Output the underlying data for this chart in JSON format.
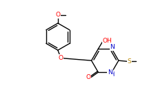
{
  "bg_color": "#ffffff",
  "bond_color": "#000000",
  "bond_width": 1.0,
  "atom_colors": {
    "O": "#ff0000",
    "N": "#0000cc",
    "S": "#bb8800",
    "C": "#000000"
  },
  "font_size_atom": 6.5
}
